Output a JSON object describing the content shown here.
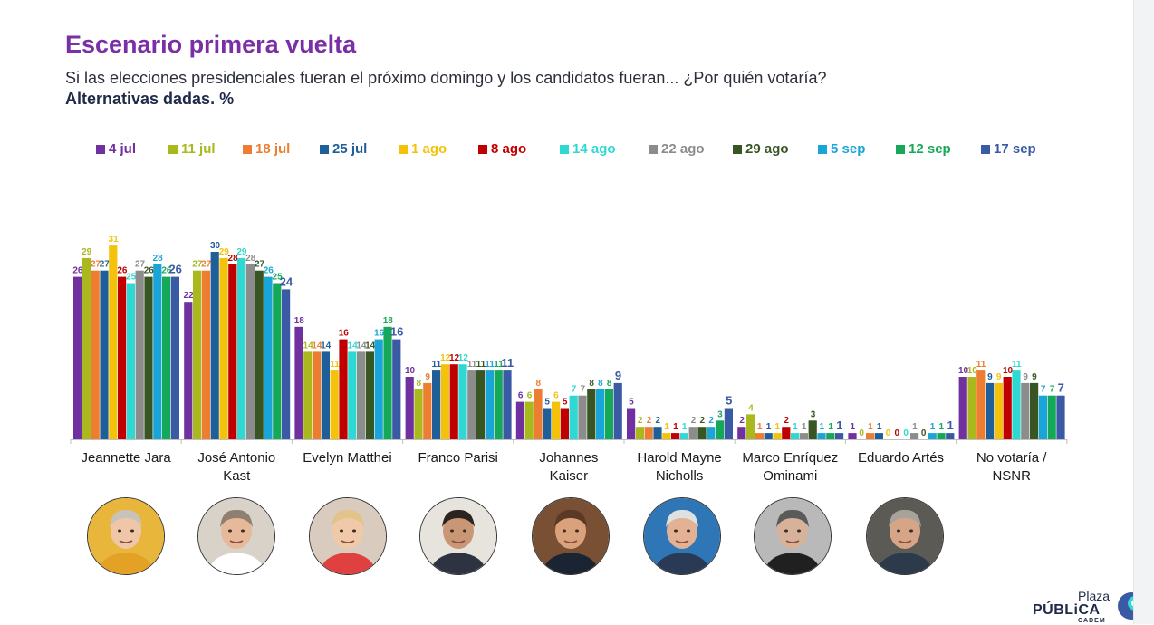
{
  "header": {
    "title": "Escenario primera vuelta",
    "subtitle": "Si las elecciones presidenciales fueran el próximo domingo y los candidatos fueran... ¿Por quién votaría?",
    "note": "Alternativas dadas. %"
  },
  "chart_data": {
    "type": "bar",
    "categories": [
      [
        "Jeannette Jara"
      ],
      [
        "José Antonio",
        "Kast"
      ],
      [
        "Evelyn Matthei"
      ],
      [
        "Franco Parisi"
      ],
      [
        "Johannes",
        "Kaiser"
      ],
      [
        "Harold Mayne",
        "Nicholls"
      ],
      [
        "Marco Enríquez",
        "Ominami"
      ],
      [
        "Eduardo Artés"
      ],
      [
        "No votaría /",
        "NSNR"
      ]
    ],
    "series": [
      {
        "name": "4 jul",
        "color": "#7030a0",
        "values": [
          26,
          22,
          18,
          10,
          6,
          5,
          2,
          1,
          10
        ]
      },
      {
        "name": "11 jul",
        "color": "#a9b81c",
        "values": [
          29,
          27,
          14,
          8,
          6,
          2,
          4,
          0,
          10
        ]
      },
      {
        "name": "18 jul",
        "color": "#ed7d31",
        "values": [
          27,
          27,
          14,
          9,
          8,
          2,
          1,
          1,
          11
        ]
      },
      {
        "name": "25 jul",
        "color": "#1f5f99",
        "values": [
          27,
          30,
          14,
          11,
          5,
          2,
          1,
          1,
          9
        ]
      },
      {
        "name": "1 ago",
        "color": "#f5c20b",
        "values": [
          31,
          29,
          11,
          12,
          6,
          1,
          1,
          0,
          9
        ]
      },
      {
        "name": "8 ago",
        "color": "#c00000",
        "values": [
          26,
          28,
          16,
          12,
          5,
          1,
          2,
          0,
          10
        ]
      },
      {
        "name": "14 ago",
        "color": "#2fd8d2",
        "values": [
          25,
          29,
          14,
          12,
          7,
          1,
          1,
          0,
          11
        ]
      },
      {
        "name": "22 ago",
        "color": "#8c8c8c",
        "values": [
          27,
          28,
          14,
          11,
          7,
          2,
          1,
          1,
          9
        ]
      },
      {
        "name": "29 ago",
        "color": "#375623",
        "values": [
          26,
          27,
          14,
          11,
          8,
          2,
          3,
          0,
          9
        ]
      },
      {
        "name": "5 sep",
        "color": "#1aa5d9",
        "values": [
          28,
          26,
          16,
          11,
          8,
          2,
          1,
          1,
          7
        ]
      },
      {
        "name": "12 sep",
        "color": "#15a858",
        "values": [
          26,
          25,
          18,
          11,
          8,
          3,
          1,
          1,
          7
        ]
      },
      {
        "name": "17 sep",
        "color": "#3a5aa5",
        "values": [
          26,
          24,
          16,
          11,
          9,
          5,
          1,
          1,
          7
        ]
      }
    ],
    "ylim": [
      0,
      35
    ],
    "grid": false,
    "legend": "top"
  },
  "logo": {
    "line1": "Plaza",
    "line2": "PÚBLiCA",
    "line3": "CADEM",
    "accent": "#3a5aa5"
  }
}
